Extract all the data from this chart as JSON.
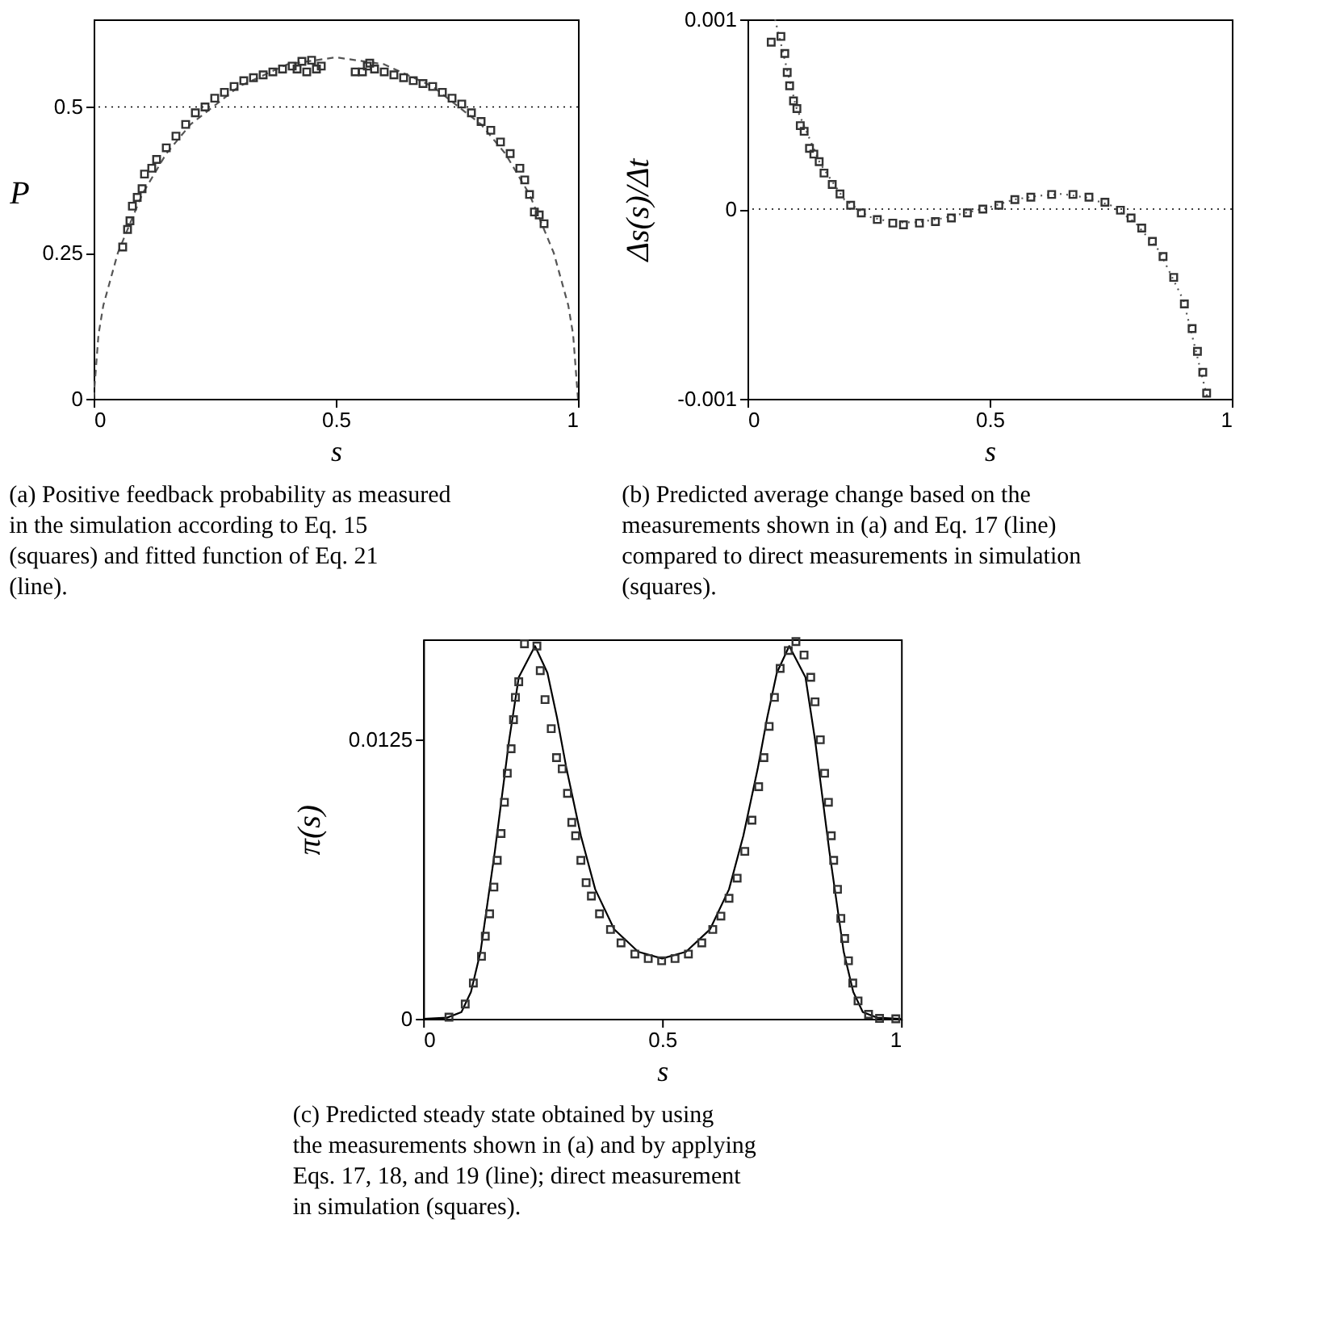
{
  "chart_data": [
    {
      "type": "scatter",
      "xlabel": "s",
      "ylabel": "P",
      "xlim": [
        0,
        1
      ],
      "ylim": [
        0,
        0.65
      ],
      "xticks": [
        0,
        0.5,
        1
      ],
      "yticks": [
        0,
        0.25,
        0.5
      ],
      "series": [
        {
          "type": "line",
          "color": "#555555",
          "line_style": "dashed",
          "x": [
            0,
            0.01,
            0.02,
            0.05,
            0.1,
            0.15,
            0.2,
            0.3,
            0.4,
            0.5,
            0.6,
            0.7,
            0.8,
            0.85,
            0.9,
            0.95,
            0.98,
            0.99,
            1
          ],
          "values": [
            0,
            0.11,
            0.16,
            0.25,
            0.35,
            0.42,
            0.47,
            0.535,
            0.573,
            0.585,
            0.573,
            0.535,
            0.47,
            0.42,
            0.35,
            0.25,
            0.16,
            0.11,
            0
          ]
        },
        {
          "marker": "square",
          "color": "#333333",
          "x": [
            0.06,
            0.07,
            0.075,
            0.08,
            0.09,
            0.1,
            0.105,
            0.12,
            0.13,
            0.15,
            0.17,
            0.19,
            0.21,
            0.23,
            0.25,
            0.27,
            0.29,
            0.31,
            0.33,
            0.35,
            0.37,
            0.39,
            0.41,
            0.42,
            0.43,
            0.44,
            0.45,
            0.46,
            0.47,
            0.54,
            0.555,
            0.565,
            0.57,
            0.58,
            0.6,
            0.62,
            0.64,
            0.66,
            0.68,
            0.7,
            0.72,
            0.74,
            0.76,
            0.78,
            0.8,
            0.82,
            0.84,
            0.86,
            0.88,
            0.89,
            0.9,
            0.91,
            0.92,
            0.93
          ],
          "values": [
            0.26,
            0.29,
            0.305,
            0.33,
            0.345,
            0.36,
            0.385,
            0.395,
            0.41,
            0.43,
            0.45,
            0.47,
            0.49,
            0.5,
            0.515,
            0.525,
            0.535,
            0.545,
            0.55,
            0.555,
            0.56,
            0.565,
            0.57,
            0.565,
            0.578,
            0.56,
            0.58,
            0.565,
            0.57,
            0.56,
            0.56,
            0.57,
            0.575,
            0.565,
            0.56,
            0.555,
            0.55,
            0.545,
            0.54,
            0.535,
            0.525,
            0.515,
            0.505,
            0.49,
            0.475,
            0.46,
            0.44,
            0.42,
            0.395,
            0.375,
            0.35,
            0.32,
            0.315,
            0.3
          ]
        }
      ],
      "ref_lines": [
        {
          "axis": "y",
          "value": 0.5,
          "color": "#000000",
          "line_style": "dotted"
        }
      ],
      "annotations": [
        "(a) Positive feedback probability as measured in the simulation according to Eq. 15 (squares) and fitted function of Eq. 21 (line)."
      ]
    },
    {
      "type": "scatter",
      "xlabel": "s",
      "ylabel": "Δs(s)/Δt",
      "xlim": [
        0,
        1
      ],
      "ylim": [
        -0.001,
        0.001
      ],
      "xticks": [
        0,
        0.5,
        1
      ],
      "yticks": [
        -0.001,
        0,
        0.001
      ],
      "series": [
        {
          "type": "line",
          "color": "#555555",
          "line_style": "dotted",
          "x": [
            0.057,
            0.1,
            0.15,
            0.2,
            0.25,
            0.3,
            0.35,
            0.4,
            0.45,
            0.5,
            0.55,
            0.6,
            0.65,
            0.7,
            0.75,
            0.8,
            0.85,
            0.9,
            0.95
          ],
          "values": [
            0.001,
            0.00054,
            0.00024,
            5e-05,
            -4e-05,
            -7e-05,
            -7e-05,
            -5e-05,
            -2e-05,
            1e-05,
            5e-05,
            7e-05,
            8e-05,
            6e-05,
            2e-05,
            -7e-05,
            -0.00022,
            -0.00048,
            -0.001
          ]
        },
        {
          "marker": "square",
          "color": "#333333",
          "x": [
            0.049,
            0.069,
            0.077,
            0.082,
            0.087,
            0.095,
            0.102,
            0.109,
            0.117,
            0.128,
            0.137,
            0.148,
            0.158,
            0.175,
            0.191,
            0.213,
            0.235,
            0.268,
            0.3,
            0.322,
            0.355,
            0.388,
            0.421,
            0.454,
            0.486,
            0.519,
            0.552,
            0.585,
            0.628,
            0.672,
            0.705,
            0.738,
            0.77,
            0.792,
            0.814,
            0.836,
            0.858,
            0.88,
            0.902,
            0.918,
            0.929,
            0.94,
            0.948
          ],
          "values": [
            0.00088,
            0.00091,
            0.00082,
            0.00072,
            0.00065,
            0.00057,
            0.00053,
            0.00044,
            0.00041,
            0.00032,
            0.00029,
            0.00025,
            0.00019,
            0.00013,
            8e-05,
            2e-05,
            -2e-05,
            -5.5e-05,
            -7.4e-05,
            -8.3e-05,
            -7.4e-05,
            -6.6e-05,
            -4.7e-05,
            -2e-05,
            0,
            2e-05,
            5e-05,
            6.3e-05,
            7.7e-05,
            7.7e-05,
            6.3e-05,
            3.6e-05,
            -6e-06,
            -4.7e-05,
            -0.0001,
            -0.00017,
            -0.00025,
            -0.00036,
            -0.0005,
            -0.00063,
            -0.00075,
            -0.00086,
            -0.00097
          ]
        }
      ],
      "ref_lines": [
        {
          "axis": "y",
          "value": 0,
          "color": "#000000",
          "line_style": "dotted"
        }
      ],
      "annotations": [
        "(b) Predicted average change based on the measurements shown in (a) and Eq. 17 (line) compared to direct measurements in simulation (squares)."
      ]
    },
    {
      "type": "scatter",
      "xlabel": "s",
      "ylabel": "π(s)",
      "xlim": [
        0,
        1
      ],
      "ylim": [
        0,
        0.017
      ],
      "xticks": [
        0,
        0.5,
        1
      ],
      "yticks": [
        0,
        0.0125
      ],
      "series": [
        {
          "type": "line",
          "color": "#000000",
          "line_style": "solid",
          "x": [
            0,
            0.05,
            0.08,
            0.1,
            0.12,
            0.15,
            0.18,
            0.2,
            0.234,
            0.26,
            0.28,
            0.3,
            0.33,
            0.36,
            0.4,
            0.45,
            0.5,
            0.55,
            0.6,
            0.64,
            0.67,
            0.7,
            0.72,
            0.74,
            0.766,
            0.8,
            0.82,
            0.85,
            0.88,
            0.9,
            0.92,
            0.95,
            1
          ],
          "values": [
            0,
            5e-05,
            0.0003,
            0.0012,
            0.003,
            0.0075,
            0.0125,
            0.0153,
            0.0167,
            0.0155,
            0.0135,
            0.0112,
            0.0082,
            0.0058,
            0.004,
            0.003,
            0.0027,
            0.003,
            0.004,
            0.0058,
            0.0082,
            0.0112,
            0.0135,
            0.0155,
            0.0167,
            0.0153,
            0.0125,
            0.0075,
            0.003,
            0.0012,
            0.0003,
            5e-05,
            0
          ]
        },
        {
          "marker": "square",
          "color": "#333333",
          "x": [
            0.054,
            0.088,
            0.105,
            0.122,
            0.13,
            0.139,
            0.148,
            0.155,
            0.163,
            0.17,
            0.176,
            0.184,
            0.189,
            0.193,
            0.2,
            0.212,
            0.238,
            0.245,
            0.255,
            0.268,
            0.279,
            0.291,
            0.302,
            0.311,
            0.319,
            0.33,
            0.341,
            0.352,
            0.369,
            0.392,
            0.414,
            0.443,
            0.471,
            0.499,
            0.527,
            0.555,
            0.583,
            0.606,
            0.623,
            0.64,
            0.657,
            0.673,
            0.688,
            0.702,
            0.713,
            0.724,
            0.735,
            0.747,
            0.764,
            0.78,
            0.797,
            0.811,
            0.82,
            0.831,
            0.84,
            0.848,
            0.854,
            0.859,
            0.867,
            0.874,
            0.882,
            0.89,
            0.899,
            0.91,
            0.932,
            0.955,
            0.989
          ],
          "values": [
            7e-05,
            0.00066,
            0.0016,
            0.0028,
            0.0037,
            0.0047,
            0.0059,
            0.0071,
            0.0083,
            0.0097,
            0.011,
            0.0121,
            0.0134,
            0.0144,
            0.0151,
            0.0168,
            0.0167,
            0.0156,
            0.0143,
            0.013,
            0.0117,
            0.0112,
            0.0101,
            0.0088,
            0.0082,
            0.0071,
            0.0061,
            0.0055,
            0.0047,
            0.004,
            0.0034,
            0.0029,
            0.0027,
            0.0026,
            0.0027,
            0.0029,
            0.0034,
            0.004,
            0.0046,
            0.0054,
            0.0063,
            0.0075,
            0.0089,
            0.0104,
            0.0117,
            0.0131,
            0.0144,
            0.0157,
            0.0165,
            0.0169,
            0.0163,
            0.0153,
            0.0142,
            0.0125,
            0.011,
            0.0097,
            0.0082,
            0.0071,
            0.0058,
            0.0045,
            0.0036,
            0.0026,
            0.0016,
            0.0008,
            0.0002,
            2e-05,
            0
          ]
        }
      ],
      "annotations": [
        "(c) Predicted steady state obtained by using the measurements shown in (a) and by applying Eqs. 17, 18, and 19 (line); direct measurement in simulation (squares)."
      ]
    }
  ]
}
